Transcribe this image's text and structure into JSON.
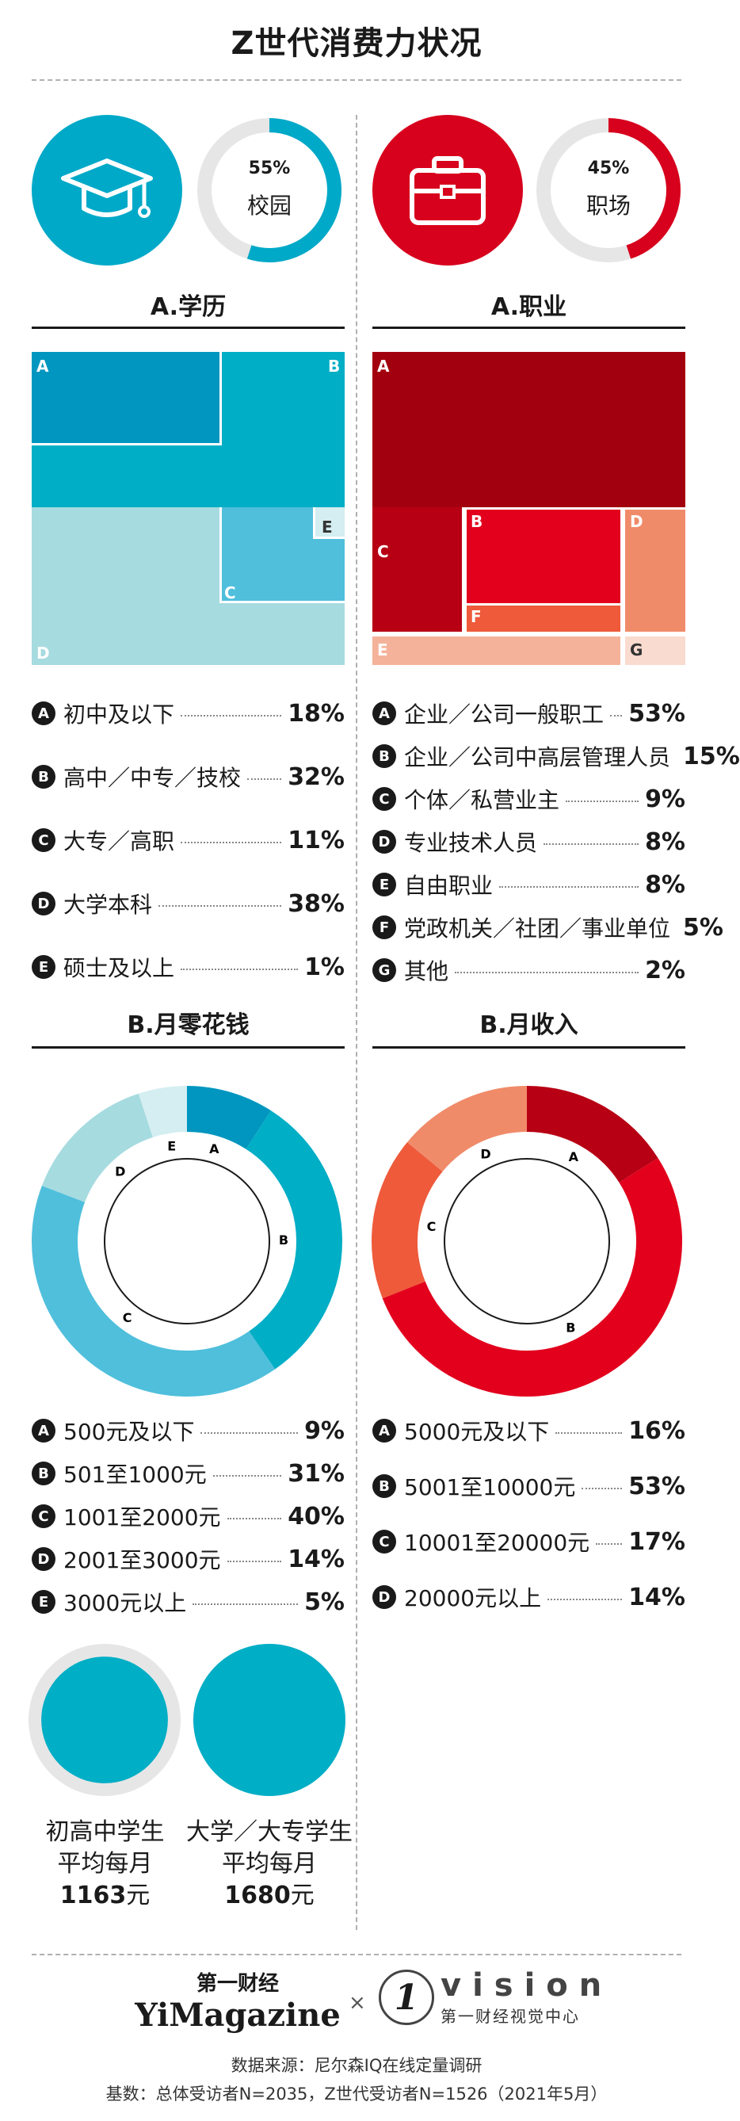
{
  "title": "Z世代消费力状况",
  "school": {
    "pct": "55%",
    "label": "校园",
    "fraction": 0.55
  },
  "work": {
    "pct": "45%",
    "label": "职场",
    "fraction": 0.45
  },
  "colors": {
    "blue": "#00a9c8",
    "red": "#d7001d",
    "black": "#1a1a1a",
    "grey": "#e6e6e6"
  },
  "icons": {
    "school": "graduation-cap-icon",
    "work": "briefcase-icon"
  },
  "edu": {
    "title": "A.学历",
    "items": [
      {
        "letter": "A",
        "label": "初中及以下",
        "value": "18%"
      },
      {
        "letter": "B",
        "label": "高中／中专／技校",
        "value": "32%"
      },
      {
        "letter": "C",
        "label": "大专／高职",
        "value": "11%"
      },
      {
        "letter": "D",
        "label": "大学本科",
        "value": "38%"
      },
      {
        "letter": "E",
        "label": "硕士及以上",
        "value": "1%"
      }
    ]
  },
  "job": {
    "title": "A.职业",
    "items": [
      {
        "letter": "A",
        "label": "企业／公司一般职工",
        "value": "53%"
      },
      {
        "letter": "B",
        "label": "企业／公司中高层管理人员",
        "value": "15%"
      },
      {
        "letter": "C",
        "label": "个体／私营业主",
        "value": "9%"
      },
      {
        "letter": "D",
        "label": "专业技术人员",
        "value": "8%"
      },
      {
        "letter": "E",
        "label": "自由职业",
        "value": "8%"
      },
      {
        "letter": "F",
        "label": "党政机关／社团／事业单位",
        "value": "5%"
      },
      {
        "letter": "G",
        "label": "其他",
        "value": "2%"
      }
    ]
  },
  "pocket": {
    "title": "B.月零花钱",
    "items": [
      {
        "letter": "A",
        "label": "500元及以下",
        "value": "9%"
      },
      {
        "letter": "B",
        "label": "501至1000元",
        "value": "31%"
      },
      {
        "letter": "C",
        "label": "1001至2000元",
        "value": "40%"
      },
      {
        "letter": "D",
        "label": "2001至3000元",
        "value": "14%"
      },
      {
        "letter": "E",
        "label": "3000元以上",
        "value": "5%"
      }
    ]
  },
  "income": {
    "title": "B.月收入",
    "items": [
      {
        "letter": "A",
        "label": "5000元及以下",
        "value": "16%"
      },
      {
        "letter": "B",
        "label": "5001至10000元",
        "value": "53%"
      },
      {
        "letter": "C",
        "label": "10001至20000元",
        "value": "17%"
      },
      {
        "letter": "D",
        "label": "20000元以上",
        "value": "14%"
      }
    ]
  },
  "averages": [
    {
      "line1": "初高中学生",
      "line2": "平均每月",
      "amount": "1163",
      "unit": "元",
      "value": 1163
    },
    {
      "line1": "大学／大专学生",
      "line2": "平均每月",
      "amount": "1680",
      "unit": "元",
      "value": 1680
    }
  ],
  "logos": {
    "yi_cn": "第一财经",
    "yi_en": "YiMagazine",
    "cross": "×",
    "vision_en": "vision",
    "vision_cn": "第一财经视觉中心",
    "vision_mark": "1"
  },
  "footer": {
    "source": "数据来源：尼尔森IQ在线定量调研",
    "base": "基数：总体受访者N=2035，Z世代受访者N=1526（2021年5月）"
  },
  "chart_data": [
    {
      "type": "pie",
      "title": "A.学历",
      "categories": [
        "A",
        "B",
        "C",
        "D",
        "E"
      ],
      "values": [
        18,
        32,
        11,
        38,
        1
      ]
    },
    {
      "type": "pie",
      "title": "A.职业",
      "categories": [
        "A",
        "B",
        "C",
        "D",
        "E",
        "F",
        "G"
      ],
      "values": [
        53,
        15,
        9,
        8,
        8,
        5,
        2
      ]
    },
    {
      "type": "pie",
      "title": "B.月零花钱",
      "categories": [
        "A",
        "B",
        "C",
        "D",
        "E"
      ],
      "values": [
        9,
        31,
        40,
        14,
        5
      ]
    },
    {
      "type": "pie",
      "title": "B.月收入",
      "categories": [
        "A",
        "B",
        "C",
        "D"
      ],
      "values": [
        16,
        53,
        17,
        14
      ]
    },
    {
      "type": "bar",
      "categories": [
        "初高中学生",
        "大学／大专学生"
      ],
      "values": [
        1163,
        1680
      ]
    }
  ]
}
